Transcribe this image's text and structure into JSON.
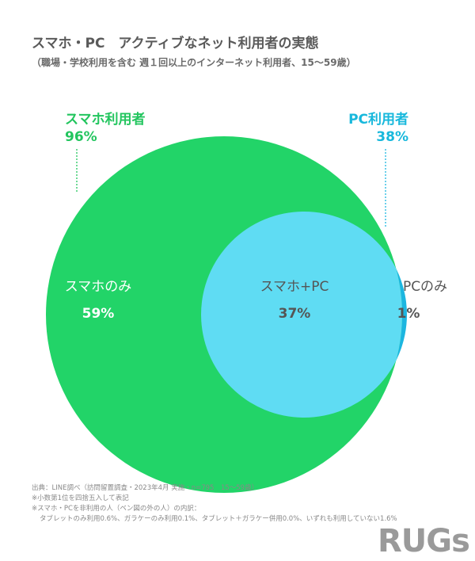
{
  "header": {
    "title": "スマホ・PC　アクティブなネット利用者の実態",
    "subtitle": "（職場・学校利用を含む 週１回以上のインターネット利用者、15～59歳）"
  },
  "chart_data": {
    "type": "venn",
    "sets": [
      {
        "name": "スマホ利用者",
        "value_label": "96%",
        "value": 96,
        "color": "#22d468"
      },
      {
        "name": "PC利用者",
        "value_label": "38%",
        "value": 38,
        "color": "#5fdcf3"
      }
    ],
    "regions": [
      {
        "label": "スマホのみ",
        "value_label": "59%",
        "value": 59
      },
      {
        "label": "スマホ+PC",
        "value_label": "37%",
        "value": 37
      },
      {
        "label": "PCのみ",
        "value_label": "1%",
        "value": 1
      }
    ]
  },
  "notes": [
    "出典：LINE調べ（訪問留置調査・2023年4月 実施・n=795　15～59歳）",
    "※小数第1位を四捨五入して表記",
    "※スマホ・PCを非利用の人（ベン図の外の人）の内訳：",
    "タブレットのみ利用0.6%、ガラケーのみ利用0.1%、タブレット＋ガラケー併用0.0%、いずれも利用していない1.6%"
  ],
  "logo": {
    "text": "RUGs"
  },
  "colors": {
    "green": "#22d468",
    "cyan": "#5fdcf3",
    "cyan_edge": "#1cb6e0",
    "green_text": "#22c55e",
    "cyan_text": "#18b8dc"
  }
}
